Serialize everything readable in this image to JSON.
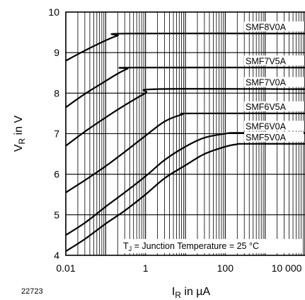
{
  "figure_number": "22723",
  "chart_data": {
    "type": "line",
    "xlabel": {
      "main": "I",
      "sub": "R",
      "rest": " in µA"
    },
    "ylabel": {
      "main": "V",
      "sub": "R",
      "rest": " in V"
    },
    "x_scale": "log",
    "xlim": [
      0.01,
      10000
    ],
    "ylim": [
      4,
      10
    ],
    "x_tick_labels": [
      {
        "value": 0.01,
        "label": "0.01"
      },
      {
        "value": 1,
        "label": "1"
      },
      {
        "value": 100,
        "label": "100"
      },
      {
        "value": 10000,
        "label": "10 000"
      }
    ],
    "y_ticks": [
      4,
      5,
      6,
      7,
      8,
      9,
      10
    ],
    "grid": true,
    "annotation": {
      "pre": "T",
      "sub": "J",
      "post": " = Junction Temperature = 25 °C"
    },
    "series": [
      {
        "name": "SMF8V0A",
        "points": [
          [
            0.01,
            8.8
          ],
          [
            0.03,
            9.05
          ],
          [
            0.1,
            9.3
          ],
          [
            0.2,
            9.42
          ],
          [
            0.35,
            9.47
          ],
          [
            10000,
            9.47
          ]
        ]
      },
      {
        "name": "SMF7V5A",
        "points": [
          [
            0.01,
            7.65
          ],
          [
            0.03,
            7.98
          ],
          [
            0.1,
            8.3
          ],
          [
            0.2,
            8.48
          ],
          [
            0.35,
            8.6
          ],
          [
            0.5,
            8.63
          ],
          [
            10000,
            8.63
          ]
        ]
      },
      {
        "name": "SMF7V0A",
        "points": [
          [
            0.01,
            6.7
          ],
          [
            0.03,
            7.05
          ],
          [
            0.1,
            7.4
          ],
          [
            0.3,
            7.7
          ],
          [
            1,
            8.0
          ],
          [
            2,
            8.1
          ],
          [
            10000,
            8.1
          ]
        ]
      },
      {
        "name": "SMF6V5A",
        "points": [
          [
            0.01,
            5.55
          ],
          [
            0.03,
            5.85
          ],
          [
            0.1,
            6.2
          ],
          [
            0.3,
            6.55
          ],
          [
            1,
            6.95
          ],
          [
            3,
            7.3
          ],
          [
            8,
            7.47
          ],
          [
            15,
            7.5
          ],
          [
            10000,
            7.5
          ]
        ]
      },
      {
        "name": "SMF6V0A",
        "points": [
          [
            0.01,
            4.5
          ],
          [
            0.03,
            4.8
          ],
          [
            0.1,
            5.2
          ],
          [
            0.3,
            5.55
          ],
          [
            1,
            5.95
          ],
          [
            3,
            6.35
          ],
          [
            10,
            6.68
          ],
          [
            30,
            6.9
          ],
          [
            100,
            7.0
          ],
          [
            200,
            7.02
          ],
          [
            10000,
            7.02
          ]
        ]
      },
      {
        "name": "SMF5V0A",
        "points": [
          [
            0.01,
            4.1
          ],
          [
            0.03,
            4.4
          ],
          [
            0.1,
            4.78
          ],
          [
            0.3,
            5.1
          ],
          [
            1,
            5.5
          ],
          [
            3,
            5.9
          ],
          [
            10,
            6.22
          ],
          [
            30,
            6.5
          ],
          [
            100,
            6.68
          ],
          [
            200,
            6.74
          ],
          [
            300,
            6.75
          ],
          [
            10000,
            6.75
          ]
        ]
      }
    ]
  }
}
